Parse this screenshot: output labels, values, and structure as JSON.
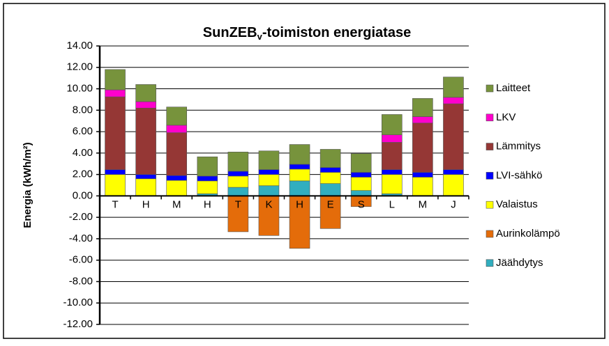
{
  "chart_data": {
    "type": "stacked_bar",
    "title": [
      "SunZEB",
      "v",
      "-toimiston energiatase"
    ],
    "y_label": "Energia (kWh/m²)",
    "categories": [
      "T",
      "H",
      "M",
      "H",
      "T",
      "K",
      "H",
      "E",
      "S",
      "L",
      "M",
      "J"
    ],
    "series": [
      {
        "name": "Jäähdytys",
        "color": "#31aebf",
        "values": [
          0,
          0,
          0,
          0.2,
          0.8,
          0.95,
          1.4,
          1.15,
          0.5,
          0.2,
          0,
          0
        ]
      },
      {
        "name": "Aurinkolämpö",
        "color": "#e46c0a",
        "values": [
          0,
          0,
          0,
          0,
          -3.35,
          -3.7,
          -4.9,
          -3.05,
          -1.0,
          0,
          0,
          0
        ]
      },
      {
        "name": "Valaistus",
        "color": "#ffff00",
        "values": [
          2.0,
          1.6,
          1.45,
          1.2,
          1.05,
          1.05,
          1.1,
          1.05,
          1.25,
          1.8,
          1.75,
          2.0
        ]
      },
      {
        "name": "LVI-sähkö",
        "color": "#0000ff",
        "values": [
          0.45,
          0.4,
          0.45,
          0.45,
          0.45,
          0.45,
          0.45,
          0.45,
          0.45,
          0.45,
          0.45,
          0.45
        ]
      },
      {
        "name": "Lämmitys",
        "color": "#953735",
        "values": [
          6.8,
          6.2,
          4.0,
          0,
          0,
          0,
          0,
          0,
          0,
          2.55,
          4.6,
          6.15
        ]
      },
      {
        "name": "LKV",
        "color": "#ff00cc",
        "values": [
          0.65,
          0.6,
          0.7,
          0,
          0,
          0,
          0,
          0,
          0,
          0.7,
          0.6,
          0.6
        ]
      },
      {
        "name": "Laitteet",
        "color": "#77933c",
        "values": [
          1.9,
          1.6,
          1.7,
          1.8,
          1.8,
          1.75,
          1.85,
          1.7,
          1.75,
          1.9,
          1.7,
          1.9
        ]
      }
    ],
    "ylim": [
      -12,
      14
    ],
    "yticks": [
      {
        "value": -12,
        "label": "-12.00"
      },
      {
        "value": -10,
        "label": "-10.00"
      },
      {
        "value": -8,
        "label": "-8.00"
      },
      {
        "value": -6,
        "label": "-6.00"
      },
      {
        "value": -4,
        "label": "-4.00"
      },
      {
        "value": -2,
        "label": "-2.00"
      },
      {
        "value": 0,
        "label": "0.00"
      },
      {
        "value": 2,
        "label": "2.00"
      },
      {
        "value": 4,
        "label": "4.00"
      },
      {
        "value": 6,
        "label": "6.00"
      },
      {
        "value": 8,
        "label": "8.00"
      },
      {
        "value": 10,
        "label": "10.00"
      },
      {
        "value": 12,
        "label": "12.00"
      },
      {
        "value": 14,
        "label": "14.00"
      }
    ],
    "grid": true,
    "legend": "right"
  }
}
